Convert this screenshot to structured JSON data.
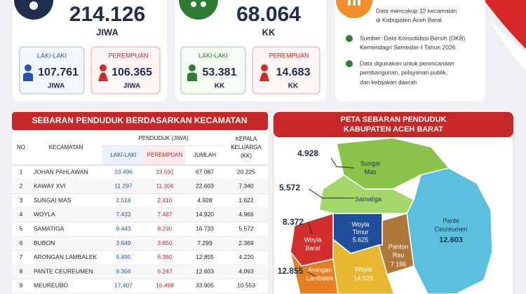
{
  "population": {
    "total": "214.126",
    "unit": "JIWA",
    "male": {
      "label": "LAKI-LAKI",
      "value": "107.761",
      "unit": "JIWA"
    },
    "female": {
      "label": "PEREMPUAN",
      "value": "106.365",
      "unit": "JIWA"
    }
  },
  "households": {
    "total": "68.064",
    "unit": "KK",
    "male": {
      "label": "LAKI-LAKI",
      "value": "53.381",
      "unit": "KK"
    },
    "female": {
      "label": "PEREMPUAN",
      "value": "14.683",
      "unit": "KK"
    }
  },
  "info": {
    "coverage": [
      "Data mencakup 12 kecamatan",
      "di Kabupaten Aceh Barat"
    ],
    "notes": [
      [
        "Sumber: Data Konsolidasi Bersih (DKB)",
        "Kemendagri Semester-I Tahun 2026"
      ],
      [
        "Data digunakan untuk perencanaan",
        "pembangunan, pelayanan publik,",
        "dan kebijakan daerah"
      ]
    ]
  },
  "table": {
    "title": "SEBARAN PENDUDUK BERDASARKAN KECAMATAN",
    "headers": {
      "no": "NO",
      "district": "KECAMATAN",
      "population": "PENDUDUK (JIWA)",
      "male": "LAKI-LAKI",
      "female": "PEREMPUAN",
      "total": "JUMLAH",
      "households": [
        "KEPALA",
        "KELUARGA",
        "(KK)"
      ]
    },
    "rows": [
      [
        "1",
        "JOHAN PAHLAWAN",
        "33.496",
        "33.591",
        "67.087",
        "20.225"
      ],
      [
        "2",
        "KAWAY XVI",
        "11.297",
        "11.306",
        "22.603",
        "7.340"
      ],
      [
        "3",
        "SUNGAI MAS",
        "2.518",
        "2.410",
        "4.928",
        "1.622"
      ],
      [
        "4",
        "WOYLA",
        "7.433",
        "7.487",
        "14.920",
        "4.966"
      ],
      [
        "5",
        "SAMATIGA",
        "8.443",
        "8.290",
        "16.733",
        "5.572"
      ],
      [
        "6",
        "BUBON",
        "3.649",
        "3.650",
        "7.299",
        "2.369"
      ],
      [
        "7",
        "ARONGAN LAMBALEK",
        "6.495",
        "6.360",
        "12.855",
        "4.220"
      ],
      [
        "8",
        "PANTE CEUREUMEN",
        "6.356",
        "6.247",
        "12.603",
        "4.093"
      ],
      [
        "9",
        "MEUREUBO",
        "17.407",
        "16.498",
        "33.905",
        "10.553"
      ]
    ]
  },
  "map": {
    "title": [
      "PETA SEBARAN PENDUDUK",
      "KABUPATEN ACEH BARAT"
    ],
    "regions": [
      {
        "name": [
          "Sungai",
          "Mas"
        ]
      },
      {
        "name": [
          "Samatiga"
        ]
      },
      {
        "name": [
          "Woyla",
          "Timur"
        ],
        "value": "5.625"
      },
      {
        "name": [
          "Woyla",
          "Barat"
        ]
      },
      {
        "name": [
          "Panton",
          "Reu"
        ],
        "value": "7.196"
      },
      {
        "name": [
          "Pante",
          "Ceureumen"
        ],
        "value": "12.603"
      },
      {
        "name": [
          "Arongan",
          "Lambalek"
        ]
      },
      {
        "name": [
          "Woyla"
        ],
        "value": "14.920"
      }
    ],
    "callouts": [
      "4.928",
      "5.572",
      "8.372",
      "12.855"
    ]
  }
}
